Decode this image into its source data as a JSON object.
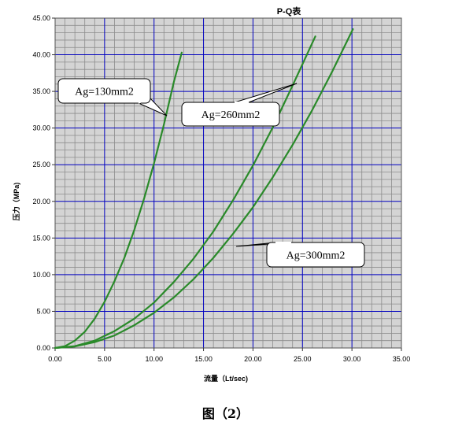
{
  "chart_data": {
    "type": "line",
    "title": "P-Q表",
    "xlabel": "流量（Lt/sec)",
    "ylabel": "压力（MPa)",
    "xlim": [
      0,
      35
    ],
    "ylim": [
      0,
      45
    ],
    "x_ticks": [
      "0.00",
      "5.00",
      "10.00",
      "15.00",
      "20.00",
      "25.00",
      "30.00",
      "35.00"
    ],
    "y_ticks": [
      "0.00",
      "5.00",
      "10.00",
      "15.00",
      "20.00",
      "25.00",
      "30.00",
      "35.00",
      "40.00",
      "45.00"
    ],
    "minor_grid": true,
    "grid": true,
    "colors": {
      "plot_bg": "#d4d4d4",
      "minor_grid": "#8c8c8c",
      "major_grid": "#0000c0",
      "series": "#2a8a2a",
      "callout_border": "#000000",
      "callout_fill": "#ffffff"
    },
    "series": [
      {
        "name": "Ag=130mm2",
        "x": [
          0,
          1,
          2,
          3,
          4,
          5,
          6,
          7,
          8,
          9,
          10,
          11,
          12,
          12.8
        ],
        "y": [
          0,
          0.25,
          1.0,
          2.2,
          4.0,
          6.3,
          9.1,
          12.3,
          16.1,
          20.4,
          25.2,
          30.5,
          36.3,
          40.3
        ]
      },
      {
        "name": "Ag=260mm2",
        "x": [
          0,
          2,
          4,
          6,
          8,
          10,
          12,
          14,
          16,
          18,
          20,
          22,
          24,
          26.3
        ],
        "y": [
          0,
          0.25,
          1.0,
          2.3,
          4.0,
          6.2,
          9.0,
          12.2,
          15.9,
          20.2,
          24.9,
          30.1,
          35.8,
          42.5
        ]
      },
      {
        "name": "Ag=300mm2",
        "x": [
          0,
          2,
          4,
          6,
          8,
          10,
          12,
          14,
          16,
          18,
          20,
          22,
          24,
          26,
          28,
          30.1
        ],
        "y": [
          0,
          0.2,
          0.8,
          1.7,
          3.1,
          4.8,
          6.9,
          9.4,
          12.3,
          15.6,
          19.2,
          23.3,
          27.7,
          32.5,
          37.7,
          43.5
        ]
      }
    ],
    "annotations": [
      "Ag=130mm2",
      "Ag=260mm2",
      "Ag=300mm2"
    ]
  },
  "figure_caption": "图（2）"
}
